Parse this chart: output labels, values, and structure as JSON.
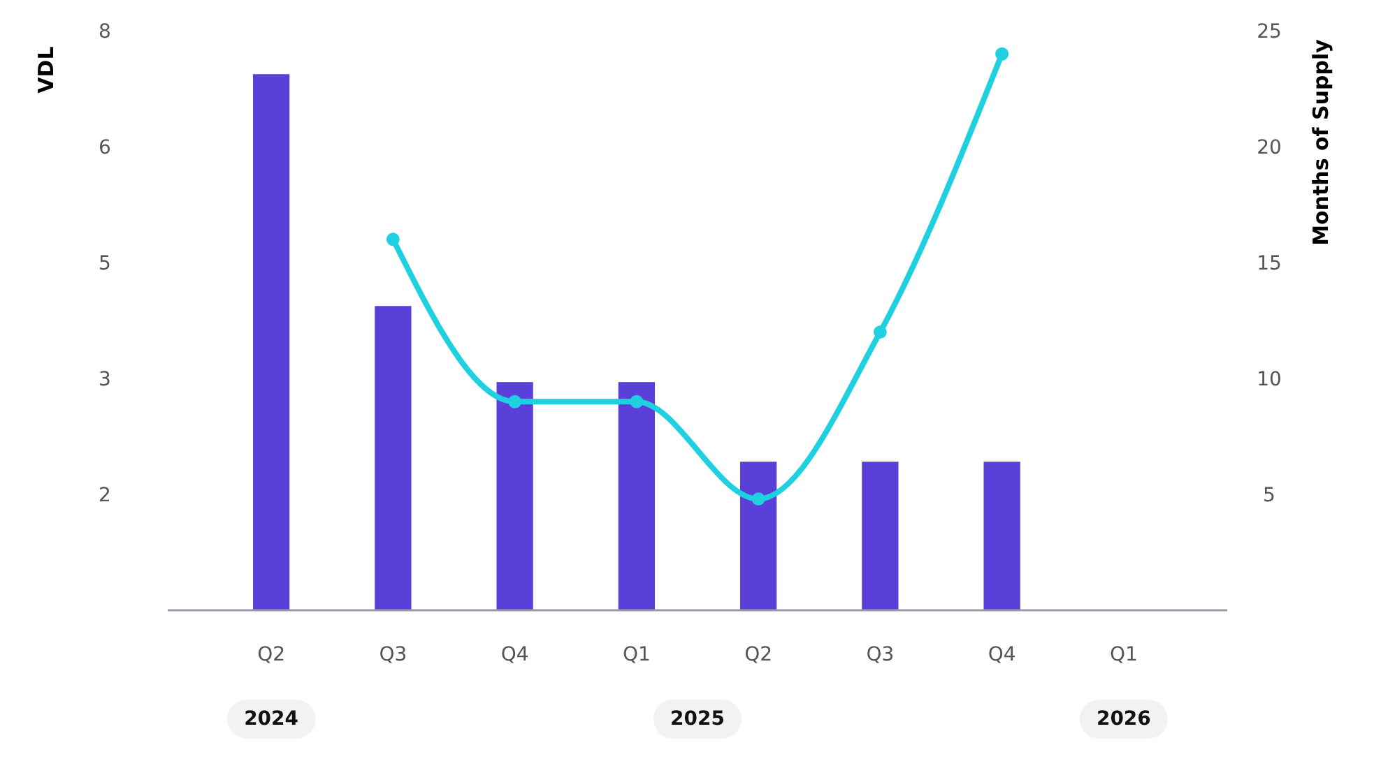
{
  "chart_data": {
    "type": "bar",
    "ylabel": "VDL",
    "y2label": "Months of Supply",
    "categories": [
      "Q2",
      "Q3",
      "Q4",
      "Q1",
      "Q2",
      "Q3",
      "Q4",
      "Q1"
    ],
    "series": [
      {
        "color": "#5b3fd9",
        "values": [
          7.4,
          4.2,
          3.15,
          3.15,
          2.05,
          2.05,
          2.05,
          null
        ]
      },
      {
        "type": "line",
        "axis": "y2",
        "color": "#1fd0e0",
        "values": [
          null,
          16,
          9,
          9,
          4.8,
          12,
          24,
          null
        ]
      }
    ],
    "ylim": [
      0,
      8
    ],
    "yticks": [
      {
        "value": 1.6,
        "label": "2"
      },
      {
        "value": 3.2,
        "label": "3"
      },
      {
        "value": 4.8,
        "label": "5"
      },
      {
        "value": 6.4,
        "label": "6"
      },
      8
    ],
    "y2lim": [
      0,
      25
    ],
    "y2ticks": [
      5,
      10,
      15,
      20,
      25
    ],
    "annotations": [
      "2024",
      "2025",
      "2026"
    ],
    "grid": false,
    "marker": "circle",
    "line_style": "solid"
  }
}
